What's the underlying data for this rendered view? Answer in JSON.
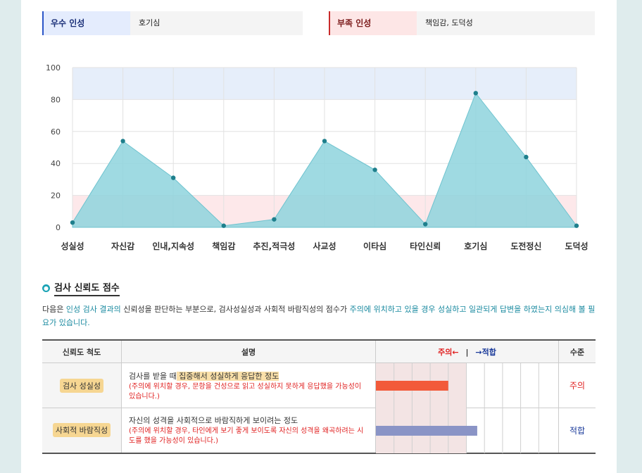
{
  "tags": {
    "excellent": {
      "label": "우수 인성",
      "value": "호기심"
    },
    "deficient": {
      "label": "부족 인성",
      "value": "책임감, 도덕성"
    }
  },
  "chart_data": {
    "type": "area",
    "categories": [
      "성실성",
      "자신감",
      "인내,지속성",
      "책임감",
      "추진,적극성",
      "사교성",
      "이타심",
      "타인신뢰",
      "호기심",
      "도전정신",
      "도덕성"
    ],
    "values": [
      3,
      54,
      31,
      1,
      5,
      54,
      36,
      2,
      84,
      44,
      1
    ],
    "ylim": [
      0,
      100
    ],
    "yticks": [
      "0",
      "20",
      "40",
      "60",
      "80",
      "100"
    ],
    "bands": [
      {
        "from": 80,
        "to": 100,
        "color": "#e6eefa"
      },
      {
        "from": 0,
        "to": 20,
        "color": "#fde8ea"
      }
    ],
    "fill_color": "#8ed3dd",
    "point_color": "#1e7f8c",
    "grid": true
  },
  "section": {
    "bullet": "●",
    "title": "검사 신뢰도 점수"
  },
  "description": {
    "part1": "다음은 ",
    "part2": "인성 검사 결과의",
    "part3": " 신뢰성을 판단하는 부분으로, 검사성실성과 사회적 바람직성의 점수가 ",
    "part4": "주의에 위치하고 있을 경우 성실하고 일관되게 답변을 하였는지 의심해 볼 필요가 있습니다."
  },
  "table": {
    "headers": {
      "scale": "신뢰도 척도",
      "explanation": "설명",
      "warn": "주의←",
      "sep": "|",
      "ok": "→적합",
      "level": "수준"
    },
    "rows": [
      {
        "name": "검사 성실성",
        "main_a": "검사를 받을 때",
        "main_b": " 집중해서 성실하게 응답한 정도",
        "sub": "(주의에 위치할 경우, 문항을 건성으로 읽고 성실하지 못하게 응답했을 가능성이 있습니다.)",
        "value": 40,
        "bar_color": "#f25a3a",
        "level": "주의",
        "level_color": "#e02020"
      },
      {
        "name": "사회적 바람직성",
        "main_a": "자신의 성격을 사회적으로 바람직하게 보이려는 정도",
        "main_b": "",
        "sub": "(주의에 위치할 경우, 타인에게 보기 좋게 보이도록 자신의 성격을 왜곡하려는 시도를 했을 가능성이 있습니다.)",
        "value": 56,
        "bar_color": "#8a94c6",
        "level": "적합",
        "level_color": "#1a3a9a"
      }
    ],
    "warn_zone": 50
  }
}
